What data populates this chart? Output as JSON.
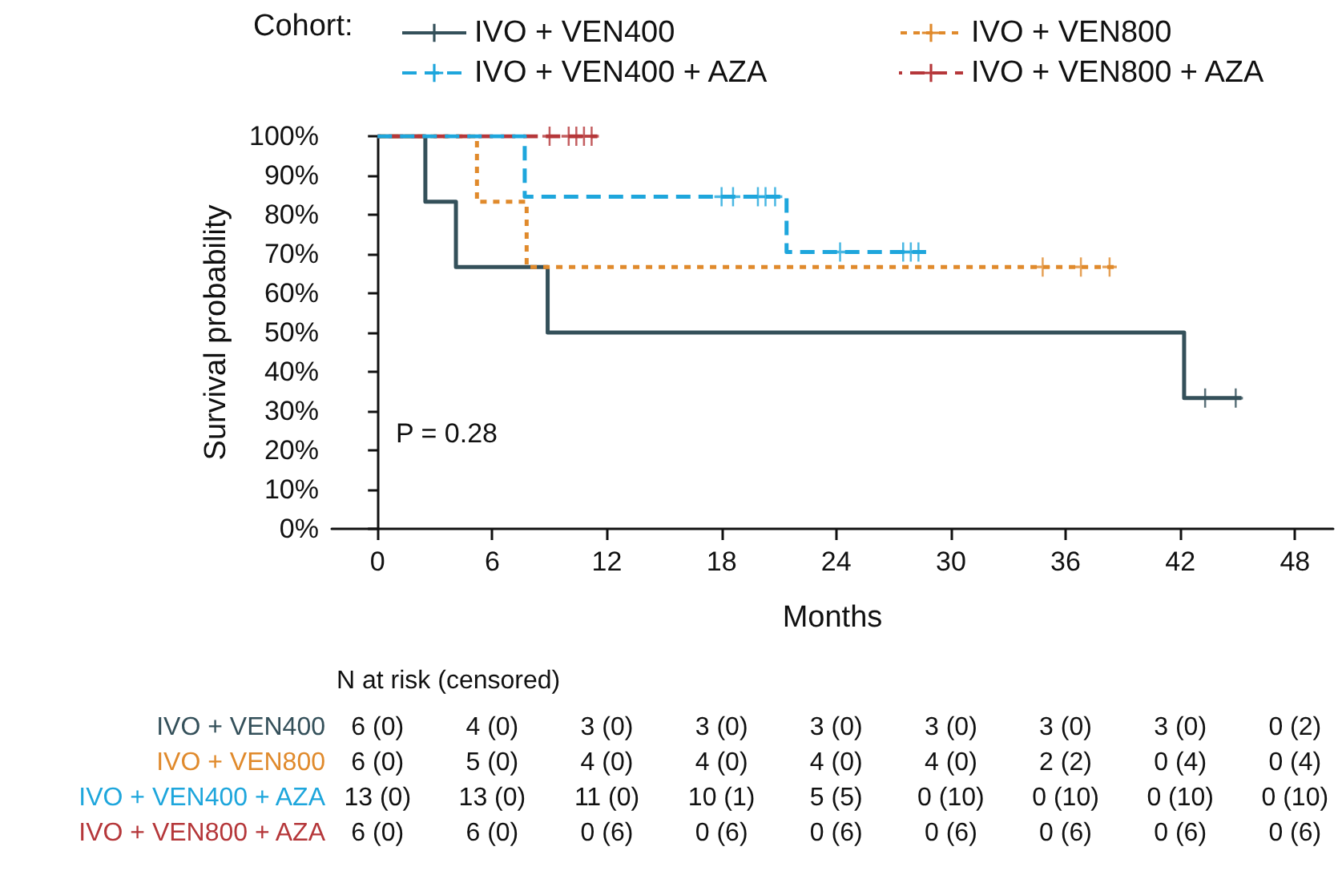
{
  "chart_data": {
    "type": "step",
    "xlabel": "Months",
    "ylabel": "Survival probability",
    "legend_title": "Cohort:",
    "legend": "top",
    "xlim": [
      -2.4,
      50
    ],
    "xticks": [
      0,
      6,
      12,
      18,
      24,
      30,
      36,
      42,
      48
    ],
    "ylim": [
      0,
      100
    ],
    "yticks": [
      {
        "value": 0,
        "label": "0%"
      },
      {
        "value": 10,
        "label": "10%"
      },
      {
        "value": 20,
        "label": "20%"
      },
      {
        "value": 30,
        "label": "30%"
      },
      {
        "value": 40,
        "label": "40%"
      },
      {
        "value": 50,
        "label": "50%"
      },
      {
        "value": 60,
        "label": "60%"
      },
      {
        "value": 70,
        "label": "70%"
      },
      {
        "value": 80,
        "label": "80%"
      },
      {
        "value": 90,
        "label": "90%"
      },
      {
        "value": 100,
        "label": "100%"
      }
    ],
    "grid": false,
    "series": [
      {
        "name": "IVO + VEN400",
        "color": "#34505a",
        "line_style": "solid",
        "marker": "none",
        "x": [
          0,
          2.5,
          4.1,
          8.9,
          42.2,
          45.2
        ],
        "values": [
          100,
          83.3,
          66.7,
          50,
          33.3,
          33.3
        ]
      },
      {
        "name": "IVO + VEN800",
        "color": "#e08a2c",
        "line_style": "dotted",
        "marker": "none",
        "x": [
          0,
          5.2,
          7.8,
          38.7
        ],
        "values": [
          100,
          83.3,
          66.7,
          66.7
        ]
      },
      {
        "name": "IVO + VEN400 + AZA",
        "color": "#1ea6dc",
        "line_style": "dashed",
        "marker": "none",
        "x": [
          0,
          7.7,
          21.4,
          28.7
        ],
        "values": [
          100,
          84.6,
          70.5,
          70.5
        ]
      },
      {
        "name": "IVO + VEN800 + AZA",
        "color": "#b5373a",
        "line_style": "dashed",
        "marker": "none",
        "x": [
          0,
          11.5
        ],
        "values": [
          100,
          100
        ]
      },
      {
        "type": "scatter",
        "color": "#34505a",
        "marker": "cross",
        "x": [
          43.3,
          44.9
        ],
        "values": [
          33.3,
          33.3
        ]
      },
      {
        "type": "scatter",
        "color": "#e08a2c",
        "marker": "cross",
        "x": [
          34.8,
          36.8,
          38.3
        ],
        "values": [
          66.7,
          66.7,
          66.7
        ]
      },
      {
        "type": "scatter",
        "color": "#1ea6dc",
        "marker": "cross",
        "x": [
          18.0,
          18.6,
          19.9,
          20.3,
          20.8,
          24.2,
          27.5,
          27.9,
          28.3
        ],
        "values": [
          84.6,
          84.6,
          84.6,
          84.6,
          84.6,
          70.5,
          70.5,
          70.5,
          70.5
        ]
      },
      {
        "type": "scatter",
        "color": "#b5373a",
        "marker": "cross",
        "x": [
          9.0,
          10.0,
          10.4,
          10.8,
          11.2
        ],
        "values": [
          100,
          100,
          100,
          100,
          100
        ]
      }
    ],
    "annotations": [
      "P = 0.28",
      "N at risk (censored)",
      "IVO + VEN400",
      "6 (0)",
      "4 (0)",
      "3 (0)",
      "3 (0)",
      "3 (0)",
      "3 (0)",
      "3 (0)",
      "3 (0)",
      "0 (2)",
      "IVO + VEN800",
      "6 (0)",
      "5 (0)",
      "4 (0)",
      "4 (0)",
      "4 (0)",
      "4 (0)",
      "2 (2)",
      "0 (4)",
      "0 (4)",
      "IVO + VEN400 + AZA",
      "13 (0)",
      "13 (0)",
      "11 (0)",
      "10 (1)",
      "5 (5)",
      "0 (10)",
      "0 (10)",
      "0 (10)",
      "0 (10)",
      "IVO + VEN800 + AZA",
      "6 (0)",
      "6 (0)",
      "0 (6)",
      "0 (6)",
      "0 (6)",
      "0 (6)",
      "0 (6)",
      "0 (6)",
      "0 (6)"
    ]
  }
}
